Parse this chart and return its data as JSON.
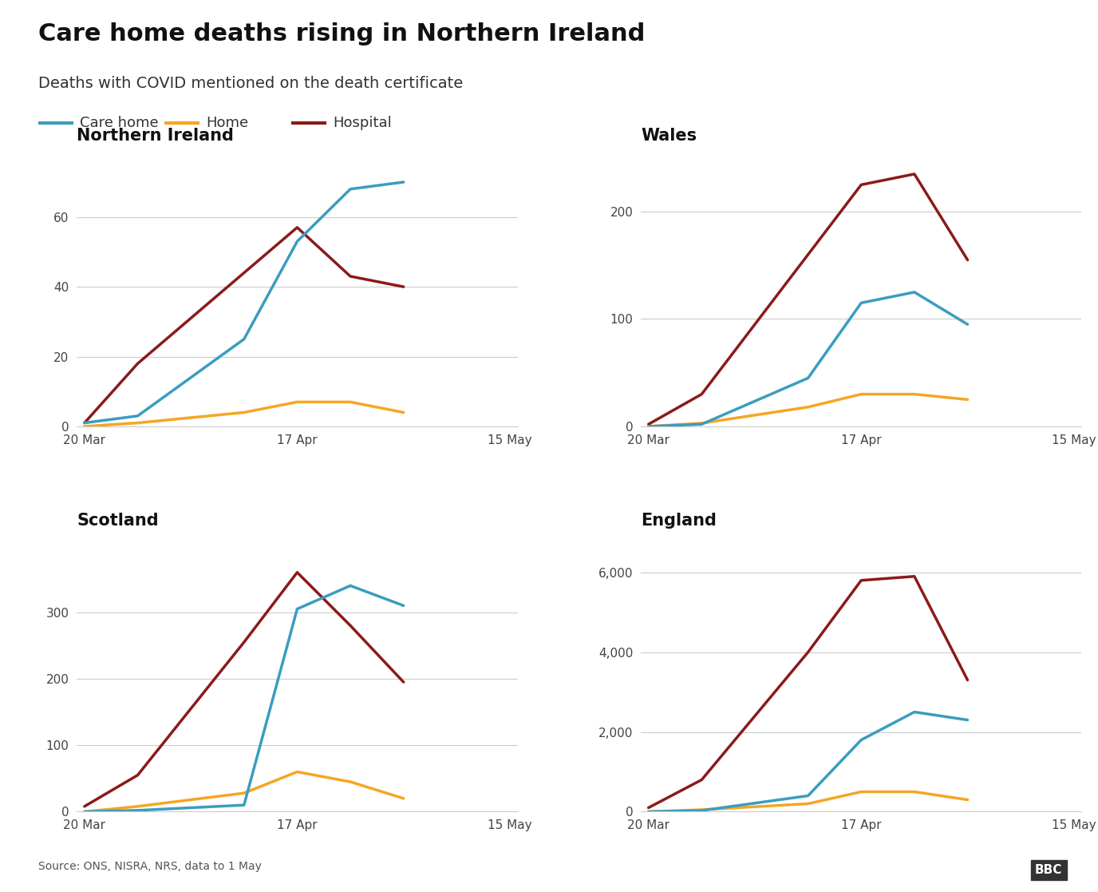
{
  "title": "Care home deaths rising in Northern Ireland",
  "subtitle": "Deaths with COVID mentioned on the death certificate",
  "source_text": "Source: ONS, NISRA, NRS, data to 1 May",
  "colors": {
    "care_home": "#3a9dbf",
    "home": "#f5a623",
    "hospital": "#8b1a1a"
  },
  "background_color": "#ffffff",
  "grid_color": "#cccccc",
  "tick_label_size": 11,
  "region_title_size": 15,
  "title_size": 22,
  "subtitle_size": 14,
  "legend_size": 13,
  "line_width": 2.5,
  "region_order": [
    "Northern Ireland",
    "Wales",
    "Scotland",
    "England"
  ],
  "region_data": {
    "Northern Ireland": {
      "x": [
        0,
        7,
        21,
        28,
        35,
        42
      ],
      "care_home": [
        1,
        3,
        25,
        53,
        68,
        70
      ],
      "home": [
        0,
        1,
        4,
        7,
        7,
        4
      ],
      "hospital": [
        1,
        18,
        44,
        57,
        43,
        40
      ]
    },
    "Wales": {
      "x": [
        0,
        7,
        21,
        28,
        35,
        42
      ],
      "care_home": [
        0,
        2,
        45,
        115,
        125,
        95
      ],
      "home": [
        0,
        3,
        18,
        30,
        30,
        25
      ],
      "hospital": [
        2,
        30,
        160,
        225,
        235,
        155
      ]
    },
    "Scotland": {
      "x": [
        0,
        7,
        21,
        28,
        35,
        42
      ],
      "care_home": [
        0,
        2,
        10,
        305,
        340,
        310
      ],
      "home": [
        0,
        8,
        28,
        60,
        45,
        20
      ],
      "hospital": [
        8,
        55,
        255,
        360,
        280,
        195
      ]
    },
    "England": {
      "x": [
        0,
        7,
        21,
        28,
        35,
        42
      ],
      "care_home": [
        0,
        30,
        400,
        1800,
        2500,
        2300
      ],
      "home": [
        0,
        50,
        200,
        500,
        500,
        300
      ],
      "hospital": [
        100,
        800,
        4000,
        5800,
        5900,
        3300
      ]
    }
  },
  "ylims": {
    "Northern Ireland": [
      0,
      80
    ],
    "Wales": [
      0,
      260
    ],
    "Scotland": [
      0,
      420
    ],
    "England": [
      0,
      7000
    ]
  },
  "yticks": {
    "Northern Ireland": [
      0,
      20,
      40,
      60
    ],
    "Wales": [
      0,
      100,
      200
    ],
    "Scotland": [
      0,
      100,
      200,
      300
    ],
    "England": [
      0,
      2000,
      4000,
      6000
    ]
  }
}
